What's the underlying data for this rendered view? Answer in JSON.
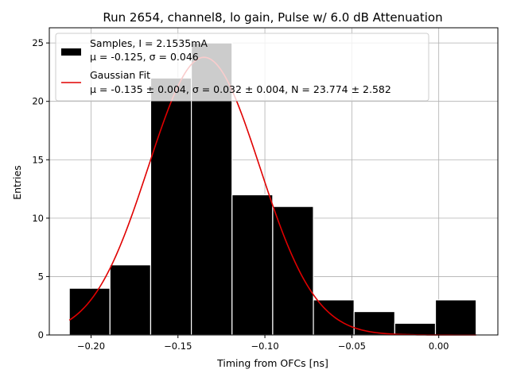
{
  "chart_data": {
    "type": "bar",
    "title": "Run 2654, channel8, lo gain, Pulse w/ 6.0 dB Attenuation",
    "xlabel": "Timing from OFCs [ns]",
    "ylabel": "Entries",
    "xlim": [
      -0.224,
      0.034
    ],
    "ylim": [
      0,
      26.3
    ],
    "grid": true,
    "legend_position": "top-left",
    "xticks": [
      {
        "value": -0.2,
        "label": "−0.20"
      },
      {
        "value": -0.15,
        "label": "−0.15"
      },
      {
        "value": -0.1,
        "label": "−0.10"
      },
      {
        "value": -0.05,
        "label": "−0.05"
      },
      {
        "value": 0.0,
        "label": "0.00"
      }
    ],
    "yticks": [
      {
        "value": 0,
        "label": "0"
      },
      {
        "value": 5,
        "label": "5"
      },
      {
        "value": 10,
        "label": "10"
      },
      {
        "value": 15,
        "label": "15"
      },
      {
        "value": 20,
        "label": "20"
      },
      {
        "value": 25,
        "label": "25"
      }
    ],
    "histogram": {
      "bin_edges": [
        -0.2125,
        -0.1891,
        -0.1657,
        -0.1423,
        -0.1189,
        -0.0955,
        -0.0721,
        -0.0487,
        -0.0253,
        -0.0019,
        0.0215
      ],
      "counts": [
        4,
        6,
        22,
        25,
        12,
        11,
        3,
        2,
        1,
        3
      ],
      "color": "#000000",
      "edgecolor": "#ffffff"
    },
    "fit": {
      "mu": -0.135,
      "sigma": 0.032,
      "N": 23.774,
      "x_range": [
        -0.2125,
        0.0215
      ],
      "color": "#e00000"
    },
    "legend": [
      {
        "key": "samples",
        "line1": "Samples, I = 2.1535mA",
        "line2": "μ = -0.125, σ = 0.046",
        "color": "#000000"
      },
      {
        "key": "fit",
        "line1": "Gaussian Fit",
        "line2": "μ = -0.135 ± 0.004, σ = 0.032 ± 0.004, N = 23.774 ± 2.582",
        "color": "#e00000"
      }
    ]
  }
}
